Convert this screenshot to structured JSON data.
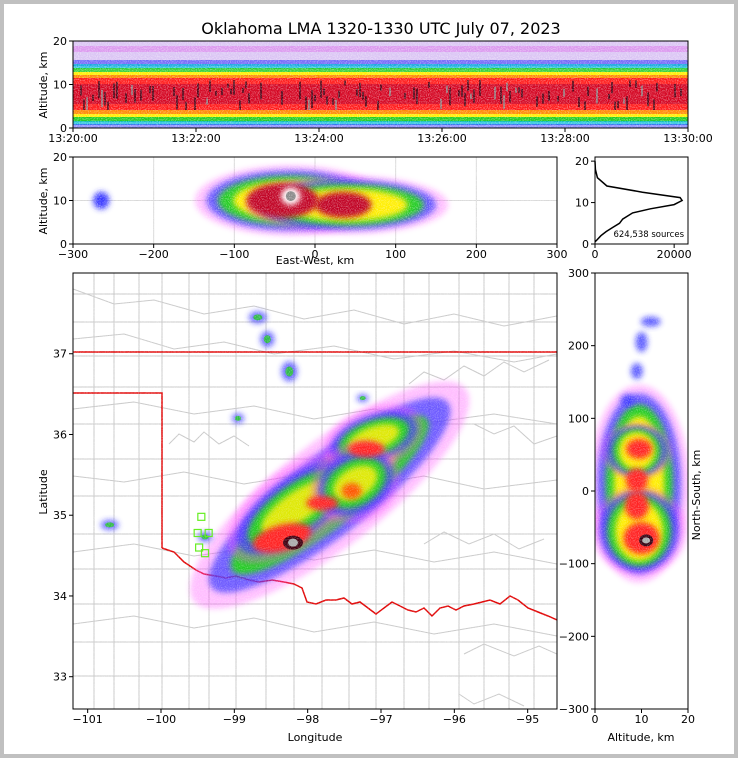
{
  "title": "Oklahoma LMA 1320-1330 UTC July 07, 2023",
  "chart_data": [
    {
      "panel": "time-height",
      "type": "heatmap",
      "ylabel": "Altitude, km",
      "xticks": [
        "13:20:00",
        "13:22:00",
        "13:24:00",
        "13:26:00",
        "13:28:00",
        "13:30:00"
      ],
      "yticks": [
        "0",
        "10",
        "20"
      ],
      "ylim": [
        0,
        20
      ],
      "description_values": {
        "core_altitude_km": [
          6,
          13
        ]
      }
    },
    {
      "panel": "east-west-altitude",
      "type": "heatmap",
      "xlabel": "East-West, km",
      "ylabel": "Altitude, km",
      "xticks": [
        "−300",
        "−200",
        "−100",
        "0",
        "100",
        "200",
        "300"
      ],
      "yticks": [
        "0",
        "10",
        "20"
      ],
      "xlim": [
        -300,
        300
      ],
      "ylim": [
        0,
        20
      ],
      "grid": true,
      "cells": [
        {
          "x": -30,
          "y": 10,
          "sx": 95,
          "sy": 6,
          "level": 2
        },
        {
          "x": 40,
          "y": 9,
          "sx": 100,
          "sy": 5,
          "level": 2
        },
        {
          "x": -40,
          "y": 10,
          "sx": 45,
          "sy": 4,
          "level": 3
        },
        {
          "x": 35,
          "y": 9,
          "sx": 35,
          "sy": 3,
          "level": 3
        },
        {
          "x": -30,
          "y": 11,
          "sx": 12,
          "sy": 2,
          "level": 4
        },
        {
          "x": -265,
          "y": 10,
          "sx": 10,
          "sy": 2,
          "level": 0
        }
      ]
    },
    {
      "panel": "altitude-histogram",
      "type": "line",
      "xticks": [
        "0",
        "20000"
      ],
      "yticks": [
        "0",
        "10",
        "20"
      ],
      "xlim": [
        0,
        23500
      ],
      "ylim": [
        0,
        21
      ],
      "annotation": "624,538 sources",
      "x": [
        0,
        500,
        1500,
        2800,
        4500,
        6200,
        7000,
        9500,
        14000,
        20000,
        22000,
        21500,
        12000,
        3000,
        600,
        100,
        0
      ],
      "y": [
        0.5,
        1.0,
        2.0,
        3.0,
        4.0,
        5.0,
        6.0,
        7.5,
        8.5,
        9.5,
        10.5,
        11.2,
        12.5,
        14.0,
        16.0,
        18.0,
        20.0
      ]
    },
    {
      "panel": "plan-view",
      "type": "heatmap",
      "xlabel": "Longitude",
      "ylabel": "Latitude",
      "xticks": [
        "−101",
        "−100",
        "−99",
        "−98",
        "−97",
        "−96",
        "−95"
      ],
      "yticks": [
        "33",
        "34",
        "35",
        "36",
        "37"
      ],
      "xlim": [
        -101.2,
        -94.6
      ],
      "ylim": [
        32.6,
        38.0
      ],
      "stations": [
        [
          -99.45,
          34.98
        ],
        [
          -99.5,
          34.78
        ],
        [
          -99.35,
          34.78
        ],
        [
          -99.48,
          34.6
        ],
        [
          -99.4,
          34.53
        ]
      ]
    },
    {
      "panel": "north-south-altitude",
      "type": "heatmap",
      "xlabel": "Altitude, km",
      "ylabel": "North-South, km",
      "xticks": [
        "0",
        "10",
        "20"
      ],
      "yticks": [
        "−300",
        "−200",
        "−100",
        "0",
        "100",
        "200",
        "300"
      ],
      "xlim": [
        0,
        20
      ],
      "ylim": [
        -300,
        300
      ]
    }
  ]
}
